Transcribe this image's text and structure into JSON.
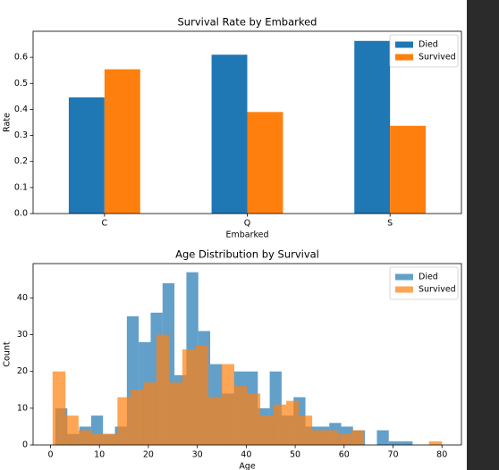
{
  "chart_data": [
    {
      "type": "bar",
      "title": "Survival Rate by Embarked",
      "x_label": "Embarked",
      "y_label": "Rate",
      "categories": [
        "C",
        "Q",
        "S"
      ],
      "series": [
        {
          "name": "Died",
          "color": "#1f77b4",
          "values": [
            0.446,
            0.61,
            0.663
          ]
        },
        {
          "name": "Survived",
          "color": "#ff7f0e",
          "values": [
            0.554,
            0.39,
            0.337
          ]
        }
      ],
      "ylim": [
        0,
        0.7
      ],
      "yticks": [
        {
          "value": 0,
          "label": "0.0"
        },
        0.1,
        0.2,
        0.3,
        0.4,
        0.5,
        0.6
      ],
      "legend": "upper right"
    },
    {
      "type": "histogram",
      "title": "Age Distribution by Survival",
      "x_label": "Age",
      "y_label": "Count",
      "series": [
        {
          "name": "Died",
          "color": "#1f77b4",
          "opacity": 0.7,
          "bins": [
            1,
            3.43,
            5.87,
            8.3,
            10.73,
            13.17,
            15.6,
            18.03,
            20.47,
            22.9,
            25.33,
            27.77,
            30.2,
            32.63,
            35.07,
            37.5,
            39.93,
            42.37,
            44.8,
            47.23,
            49.67,
            52.1,
            54.53,
            56.97,
            59.4,
            61.83,
            64.27,
            66.7,
            69.13,
            71.57,
            74
          ],
          "values": [
            10,
            3,
            5,
            8,
            3,
            5,
            35,
            28,
            36,
            44,
            19,
            47,
            31,
            22,
            14,
            20,
            20,
            10,
            20,
            8,
            13,
            5,
            5,
            6,
            5,
            4,
            0,
            4,
            1,
            1
          ]
        },
        {
          "name": "Survived",
          "color": "#ff7f0e",
          "opacity": 0.7,
          "bins": [
            0.42,
            3.07,
            5.73,
            8.38,
            11.03,
            13.68,
            16.34,
            18.99,
            21.64,
            24.3,
            26.95,
            29.6,
            32.26,
            34.91,
            37.56,
            40.21,
            42.87,
            45.52,
            48.17,
            50.83,
            53.48,
            56.13,
            58.79,
            61.44,
            64.09,
            66.75,
            69.4,
            72.05,
            74.71,
            77.36,
            80
          ],
          "values": [
            20,
            8,
            4,
            3,
            3,
            13,
            15,
            17,
            30,
            17,
            26,
            27,
            13,
            22,
            16,
            14,
            8,
            11,
            12,
            8,
            4,
            4,
            3,
            4,
            0,
            0,
            0,
            0,
            0,
            1
          ]
        }
      ],
      "xlim": [
        -3.56,
        83.98
      ],
      "xticks": [
        0,
        10,
        20,
        30,
        40,
        50,
        60,
        70,
        80
      ],
      "ylim": [
        0,
        49.35
      ],
      "yticks": [
        0,
        10,
        20,
        30,
        40
      ],
      "legend": "upper right"
    }
  ]
}
